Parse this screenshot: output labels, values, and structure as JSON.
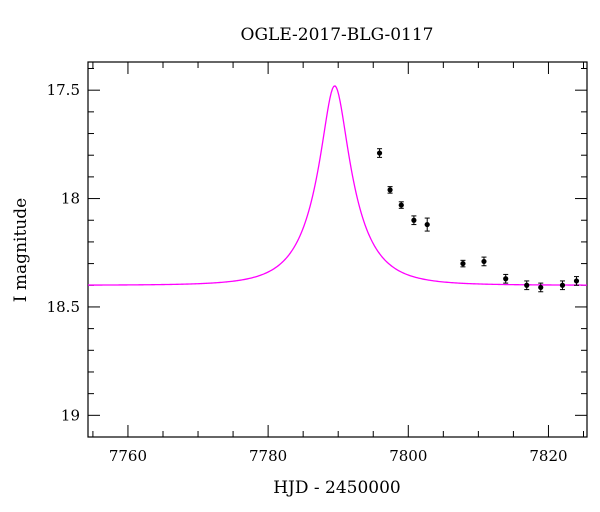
{
  "chart_data": {
    "type": "scatter",
    "title": "OGLE-2017-BLG-0117",
    "xlabel": "HJD - 2450000",
    "ylabel": "I magnitude",
    "xlim": [
      7754.3,
      7825.5
    ],
    "ylim": [
      19.1,
      17.37
    ],
    "y_inverted": true,
    "x_ticks": [
      7760,
      7780,
      7800,
      7820
    ],
    "x_tick_labels": [
      "7760",
      "7780",
      "7800",
      "7820"
    ],
    "y_ticks": [
      17.5,
      18,
      18.5,
      19
    ],
    "y_tick_labels": [
      "17.5",
      "18",
      "18.5",
      "19"
    ],
    "grid": false,
    "model_color": "#ff00ff",
    "model": {
      "name": "",
      "t0": 7789.5,
      "tE": 6.0,
      "u0": 0.29,
      "baseline_mag": 18.4,
      "peak_mag": 17.48
    },
    "series": [
      {
        "name": "",
        "x": [
          7795.9,
          7797.4,
          7799.0,
          7800.8,
          7802.7,
          7807.8,
          7810.8,
          7813.9,
          7816.9,
          7818.9,
          7822.0,
          7824.0
        ],
        "y": [
          17.79,
          17.96,
          18.03,
          18.1,
          18.12,
          18.3,
          18.29,
          18.37,
          18.4,
          18.41,
          18.4,
          18.38
        ],
        "yerr": [
          0.02,
          0.015,
          0.015,
          0.02,
          0.03,
          0.015,
          0.02,
          0.02,
          0.02,
          0.02,
          0.02,
          0.02
        ]
      }
    ]
  }
}
